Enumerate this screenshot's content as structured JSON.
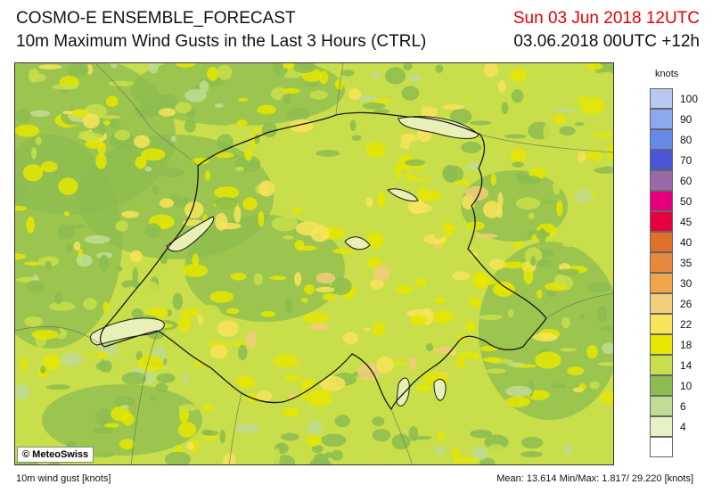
{
  "header": {
    "title": "COSMO-E ENSEMBLE_FORECAST",
    "subtitle": "10m Maximum Wind Gusts in the Last 3 Hours (CTRL)",
    "valid_time": "Sun 03 Jun 2018 12UTC",
    "run_time": "03.06.2018 00UTC +12h"
  },
  "map": {
    "copyright": "© MeteoSwiss",
    "background_color": "#c8de4a",
    "lake_color": "#e8f0b8",
    "border_color": "#1a1a1a"
  },
  "legend": {
    "unit": "knots",
    "classes": [
      {
        "label": "100",
        "color": "#b8c8f0"
      },
      {
        "label": "90",
        "color": "#8aa8f0"
      },
      {
        "label": "80",
        "color": "#6688e8"
      },
      {
        "label": "70",
        "color": "#4a55d8"
      },
      {
        "label": "60",
        "color": "#9a6aa8"
      },
      {
        "label": "50",
        "color": "#e6007e"
      },
      {
        "label": "45",
        "color": "#e8003c"
      },
      {
        "label": "40",
        "color": "#e0702a"
      },
      {
        "label": "35",
        "color": "#e8883a"
      },
      {
        "label": "30",
        "color": "#f0a44c"
      },
      {
        "label": "26",
        "color": "#f2cd7a"
      },
      {
        "label": "22",
        "color": "#f8e45a"
      },
      {
        "label": "18",
        "color": "#e6e600"
      },
      {
        "label": "14",
        "color": "#c8de4a"
      },
      {
        "label": "10",
        "color": "#8cbc50"
      },
      {
        "label": "6",
        "color": "#c0dc94"
      },
      {
        "label": "4",
        "color": "#e6f2c4"
      },
      {
        "label": "",
        "color": "#ffffff"
      }
    ]
  },
  "footer": {
    "variable": "10m wind gust [knots]",
    "stats": "Mean:  13.614  Min/Max:   1.817/ 29.220  [knots]"
  }
}
